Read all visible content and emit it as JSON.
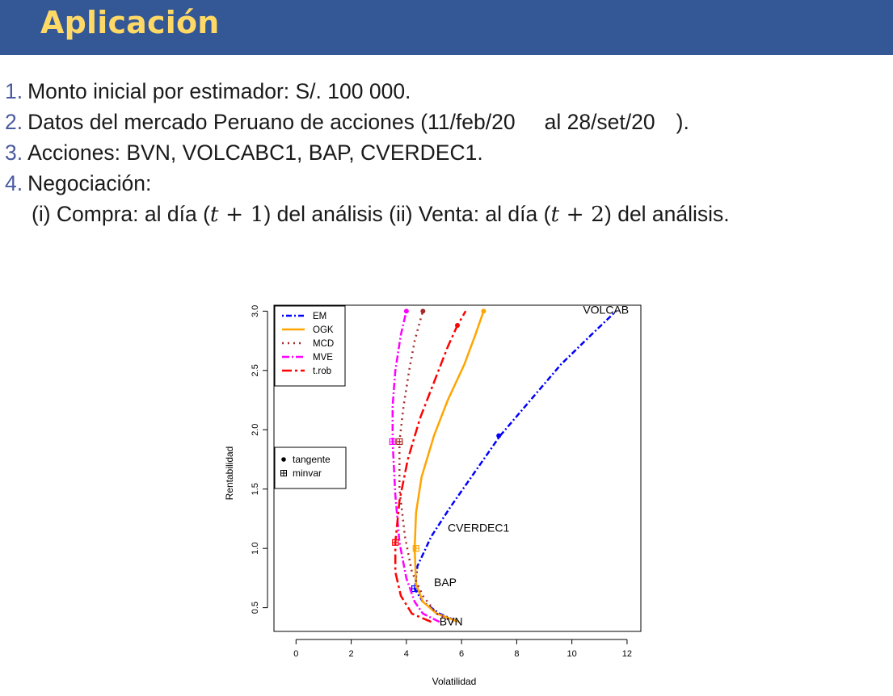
{
  "slide": {
    "title": "Aplicación",
    "items": [
      {
        "num": "1.",
        "text": "Monto inicial por estimador: S/. 100 000."
      },
      {
        "num": "2.",
        "text_a": "Datos del mercado Peruano de acciones (11/feb/20",
        "text_b": "al 28/set/20",
        "text_c": ")."
      },
      {
        "num": "3.",
        "text": "Acciones: BVN, VOLCABC1, BAP, CVERDEC1."
      },
      {
        "num": "4.",
        "text": "Negociación:"
      }
    ],
    "sub_item": {
      "part1": "(i) Compra: al día (",
      "var1": "t",
      "op1": " + 1",
      "part2": ") del análisis (ii) Venta: al día (",
      "var2": "t",
      "op2": " + 2",
      "part3": ") del análisis."
    }
  },
  "chart_data": {
    "type": "line",
    "xlabel": "Volatilidad",
    "ylabel": "Rentabilidad",
    "xlim": [
      -0.8,
      12.5
    ],
    "ylim": [
      0.3,
      3.05
    ],
    "xticks": [
      "0",
      "2",
      "4",
      "6",
      "8",
      "10",
      "12"
    ],
    "xtick_values": [
      0,
      2,
      4,
      6,
      8,
      10,
      12
    ],
    "yticks": [
      "0.5",
      "1.0",
      "1.5",
      "2.0",
      "2.5",
      "3.0"
    ],
    "ytick_values": [
      0.5,
      1.0,
      1.5,
      2.0,
      2.5,
      3.0
    ],
    "series": [
      {
        "name": "EM",
        "color": "#0000ff",
        "dash": "2,3,7,3",
        "x": [
          5.9,
          5.2,
          4.6,
          4.3,
          4.4,
          4.9,
          5.6,
          6.5,
          7.4,
          8.5,
          9.6,
          10.7,
          11.6
        ],
        "y": [
          0.38,
          0.45,
          0.55,
          0.66,
          0.85,
          1.1,
          1.35,
          1.65,
          1.95,
          2.25,
          2.55,
          2.8,
          3.0
        ],
        "tangent": [
          7.35,
          1.95
        ],
        "minvar": [
          4.3,
          0.66
        ]
      },
      {
        "name": "OGK",
        "color": "#ffa500",
        "dash": "",
        "x": [
          5.9,
          5.1,
          4.6,
          4.35,
          4.3,
          4.35,
          4.55,
          5.0,
          5.5,
          6.1,
          6.5,
          6.8
        ],
        "y": [
          0.38,
          0.45,
          0.55,
          0.7,
          1.0,
          1.3,
          1.6,
          1.95,
          2.25,
          2.55,
          2.8,
          3.0
        ],
        "tangent": [
          6.8,
          3.0
        ],
        "minvar": [
          4.35,
          1.0
        ]
      },
      {
        "name": "MCD",
        "color": "#a52a2a",
        "dash": "2,5",
        "x": [
          5.7,
          5.1,
          4.6,
          4.2,
          3.95,
          3.75,
          3.75,
          3.9,
          4.1,
          4.3,
          4.5,
          4.6
        ],
        "y": [
          0.38,
          0.45,
          0.6,
          0.8,
          1.1,
          1.5,
          1.9,
          2.2,
          2.5,
          2.75,
          2.92,
          3.0
        ],
        "tangent": [
          4.6,
          3.0
        ],
        "minvar": [
          3.75,
          1.9
        ]
      },
      {
        "name": "MVE",
        "color": "#ff00ff",
        "dash": "9,3,2,3",
        "x": [
          5.2,
          4.6,
          4.3,
          4.0,
          3.75,
          3.6,
          3.5,
          3.5,
          3.6,
          3.8,
          4.0
        ],
        "y": [
          0.38,
          0.45,
          0.55,
          0.75,
          1.05,
          1.45,
          1.9,
          2.2,
          2.5,
          2.8,
          3.0
        ],
        "tangent": [
          4.0,
          3.0
        ],
        "minvar": [
          3.5,
          1.9
        ]
      },
      {
        "name": "t.rob",
        "color": "#ff0000",
        "dash": "12,4,3,4",
        "x": [
          4.9,
          4.2,
          3.8,
          3.6,
          3.6,
          3.75,
          4.05,
          4.5,
          5.0,
          5.5,
          5.85,
          6.15
        ],
        "y": [
          0.38,
          0.45,
          0.6,
          0.8,
          1.05,
          1.4,
          1.75,
          2.1,
          2.4,
          2.7,
          2.88,
          3.0
        ],
        "tangent": [
          5.85,
          2.88
        ],
        "minvar": [
          3.6,
          1.05
        ]
      }
    ],
    "legend_series_location": "top-left",
    "legend_markers": [
      {
        "label": "tangente",
        "symbol": "dot"
      },
      {
        "label": "minvar",
        "symbol": "boxplus"
      }
    ],
    "legend_markers_location": "middle-left",
    "annotations": [
      {
        "text": "VOLCAB",
        "x": 10.4,
        "y": 2.98
      },
      {
        "text": "CVERDEC1",
        "x": 5.5,
        "y": 1.14
      },
      {
        "text": "BAP",
        "x": 5.0,
        "y": 0.68
      },
      {
        "text": "BVN",
        "x": 5.2,
        "y": 0.35
      }
    ]
  }
}
